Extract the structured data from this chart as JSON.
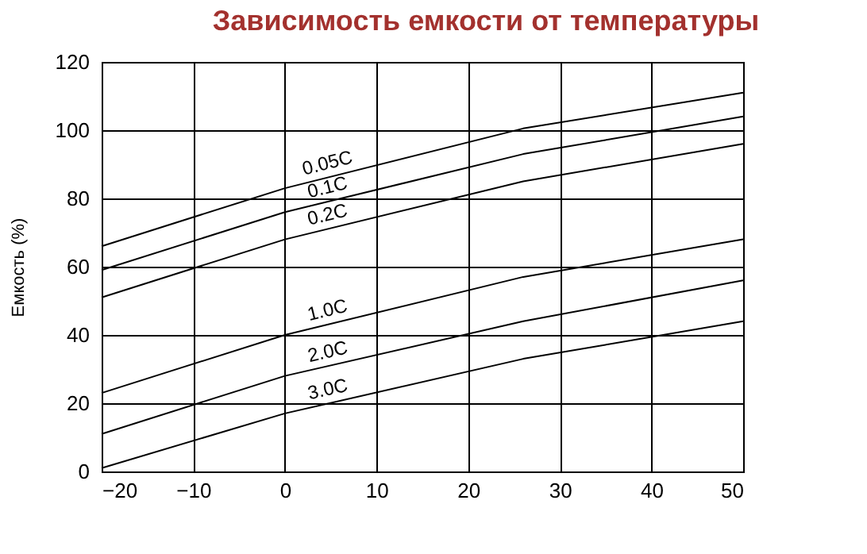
{
  "chart_data": {
    "type": "line",
    "title": "Зависимость емкости от температуры",
    "ylabel": "Емкость (%)",
    "x": [
      -20,
      0,
      26,
      50
    ],
    "series": [
      {
        "name": "0.05C",
        "color": "#000000",
        "values": [
          66,
          83,
          100.5,
          111
        ]
      },
      {
        "name": "0.1C",
        "color": "#000000",
        "values": [
          59,
          76,
          93,
          104
        ]
      },
      {
        "name": "0.2C",
        "color": "#000000",
        "values": [
          51,
          68,
          85,
          96
        ]
      },
      {
        "name": "1.0C",
        "color": "#000000",
        "values": [
          23,
          40,
          57,
          68
        ]
      },
      {
        "name": "2.0C",
        "color": "#000000",
        "values": [
          11,
          28,
          44,
          56
        ]
      },
      {
        "name": "3.0C",
        "color": "#000000",
        "values": [
          1,
          17,
          33,
          44
        ]
      }
    ],
    "xlim": [
      -20,
      50
    ],
    "xticks": [
      -20,
      -10,
      0,
      10,
      20,
      30,
      40,
      50
    ],
    "ylim": [
      0,
      120
    ],
    "yticks": [
      0,
      20,
      40,
      60,
      80,
      100,
      120
    ],
    "grid": true,
    "legend": false,
    "marker": "none",
    "line_style": "solid"
  }
}
